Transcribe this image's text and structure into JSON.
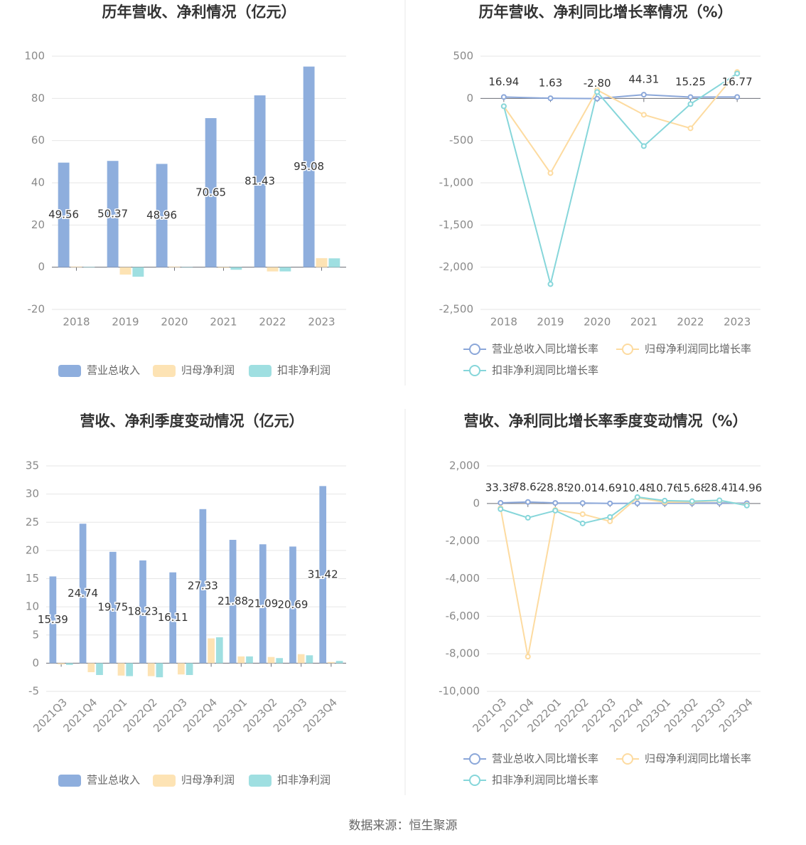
{
  "chart_data": [
    {
      "type": "bar",
      "title": "历年营收、净利情况（亿元）",
      "categories": [
        "2018",
        "2019",
        "2020",
        "2021",
        "2022",
        "2023"
      ],
      "series": [
        {
          "name": "营业总收入",
          "color": "#8eaedd",
          "values": [
            49.56,
            50.37,
            48.96,
            70.65,
            81.43,
            95.08
          ],
          "show_labels": true
        },
        {
          "name": "归母净利润",
          "color": "#fde3b4",
          "values": [
            0.3,
            -3.5,
            0.3,
            -0.3,
            -2,
            4.3
          ]
        },
        {
          "name": "扣非净利润",
          "color": "#9fdfe1",
          "values": [
            0.2,
            -4.5,
            -0.2,
            -1.2,
            -2,
            4.2
          ]
        }
      ],
      "ylim": [
        -20,
        100
      ],
      "yticks": [
        -20,
        0,
        20,
        40,
        60,
        80,
        100
      ],
      "grid": true,
      "legend": "bottom"
    },
    {
      "type": "line",
      "title": "历年营收、净利同比增长率情况（%）",
      "categories": [
        "2018",
        "2019",
        "2020",
        "2021",
        "2022",
        "2023"
      ],
      "series": [
        {
          "name": "营业总收入同比增长率",
          "color": "#8ba7d9",
          "values": [
            16.94,
            1.63,
            -2.8,
            44.31,
            15.25,
            16.77
          ],
          "value_labels": [
            "16.94",
            "1.63",
            "-2.80",
            "44.31",
            "15.25",
            "16.77"
          ],
          "show_labels": true
        },
        {
          "name": "归母净利润同比增长率",
          "color": "#fddba0",
          "values": [
            -93,
            -885,
            100,
            -194,
            -354,
            312
          ]
        },
        {
          "name": "扣非净利润同比增长率",
          "color": "#86d6da",
          "values": [
            -93,
            -2200,
            76,
            -565,
            -67,
            295
          ]
        }
      ],
      "ylim": [
        -2500,
        500
      ],
      "yticks": [
        {
          "value": -2500,
          "label": "-2,500"
        },
        {
          "value": -2000,
          "label": "-2,000"
        },
        {
          "value": -1500,
          "label": "-1,500"
        },
        {
          "value": -1000,
          "label": "-1,000"
        },
        -500,
        0,
        500
      ],
      "grid": true,
      "legend": "bottom"
    },
    {
      "type": "bar",
      "title": "营收、净利季度变动情况（亿元）",
      "categories": [
        "2021Q3",
        "2021Q4",
        "2022Q1",
        "2022Q2",
        "2022Q3",
        "2022Q4",
        "2023Q1",
        "2023Q2",
        "2023Q3",
        "2023Q4"
      ],
      "series": [
        {
          "name": "营业总收入",
          "color": "#8eaedd",
          "values": [
            15.39,
            24.74,
            19.75,
            18.23,
            16.11,
            27.33,
            21.88,
            21.09,
            20.69,
            31.42
          ],
          "show_labels": true
        },
        {
          "name": "归母净利润",
          "color": "#fde3b4",
          "values": [
            -0.2,
            -1.6,
            -2.2,
            -2.3,
            -2,
            4.4,
            1.2,
            1.1,
            1.6,
            0.2
          ]
        },
        {
          "name": "扣非净利润",
          "color": "#9fdfe1",
          "values": [
            -0.3,
            -2.1,
            -2.3,
            -2.5,
            -2.1,
            4.6,
            1.2,
            0.9,
            1.4,
            0.4
          ]
        }
      ],
      "ylim": [
        -5,
        35
      ],
      "yticks": [
        -5,
        0,
        5,
        10,
        15,
        20,
        25,
        30,
        35
      ],
      "grid": true,
      "legend": "bottom"
    },
    {
      "type": "line",
      "title": "营收、净利同比增长率季度变动情况（%）",
      "categories": [
        "2021Q3",
        "2021Q4",
        "2022Q1",
        "2022Q2",
        "2022Q3",
        "2022Q4",
        "2023Q1",
        "2023Q2",
        "2023Q3",
        "2023Q4"
      ],
      "series": [
        {
          "name": "营业总收入同比增长率",
          "color": "#8ba7d9",
          "values": [
            33.38,
            78.62,
            28.85,
            20.01,
            4.69,
            10.48,
            10.76,
            15.68,
            28.41,
            14.96
          ],
          "show_labels": true
        },
        {
          "name": "归母净利润同比增长率",
          "color": "#fddba0",
          "values": [
            -250,
            -8150,
            -340,
            -570,
            -950,
            300,
            70,
            80,
            150,
            -80
          ]
        },
        {
          "name": "扣非净利润同比增长率",
          "color": "#86d6da",
          "values": [
            -300,
            -760,
            -380,
            -1060,
            -720,
            340,
            150,
            120,
            170,
            -110
          ]
        }
      ],
      "ylim": [
        -10000,
        2000
      ],
      "yticks": [
        {
          "value": -10000,
          "label": "-10,000"
        },
        {
          "value": -8000,
          "label": "-8,000"
        },
        {
          "value": -6000,
          "label": "-6,000"
        },
        {
          "value": -4000,
          "label": "-4,000"
        },
        {
          "value": -2000,
          "label": "-2,000"
        },
        0,
        {
          "value": 2000,
          "label": "2,000"
        }
      ],
      "grid": true,
      "legend": "bottom"
    }
  ],
  "footer": "数据来源：恒生聚源"
}
